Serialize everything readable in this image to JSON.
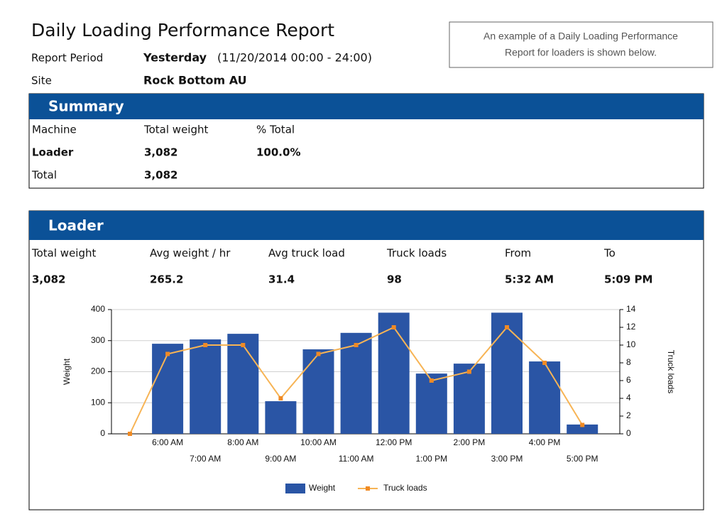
{
  "header": {
    "title": "Daily Loading Performance Report",
    "period_label": "Report Period",
    "period_value": "Yesterday",
    "period_range": "(11/20/2014 00:00 - 24:00)",
    "site_label": "Site",
    "site_value": "Rock Bottom AU",
    "note": [
      "An example of a Daily Loading Performance",
      "Report for loaders is shown below."
    ]
  },
  "summary": {
    "title": "Summary",
    "columns": [
      "Machine",
      "Total weight",
      "% Total"
    ],
    "rows": [
      [
        "Loader",
        "3,082",
        "100.0%"
      ],
      [
        "Total",
        "3,082"
      ]
    ]
  },
  "loader": {
    "title": "Loader",
    "labels": [
      "Total weight",
      "Avg weight / hr",
      "Avg truck load",
      "Truck loads",
      "From",
      "To"
    ],
    "values": [
      "3,082",
      "265.2",
      "31.4",
      "98",
      "5:32 AM",
      "5:09 PM"
    ]
  },
  "chart_data": {
    "type": "bar-line",
    "categories": [
      null,
      "6:00 AM",
      "7:00 AM",
      "8:00 AM",
      "9:00 AM",
      "10:00 AM",
      "11:00 AM",
      "12:00 PM",
      "1:00 PM",
      "2:00 PM",
      "3:00 PM",
      "4:00 PM",
      "5:00 PM"
    ],
    "series": [
      {
        "name": "Weight",
        "color": "#2a55a5",
        "values": [
          0,
          290,
          304,
          322,
          105,
          272,
          325,
          390,
          194,
          226,
          390,
          233,
          30
        ]
      },
      {
        "name": "Truck loads",
        "color": "#f7b455",
        "axis": "y2",
        "values": [
          0,
          9,
          10,
          10,
          4,
          9,
          10,
          12,
          6,
          7,
          12,
          8,
          1
        ]
      }
    ],
    "y_label": "Weight",
    "y2_label": "Truck loads",
    "ylim": [
      0,
      400
    ],
    "yticks": [
      0,
      100,
      200,
      300,
      400
    ],
    "y2lim": [
      0,
      14
    ],
    "y2ticks": [
      0,
      2,
      4,
      6,
      8,
      10,
      12,
      14
    ],
    "grid": true
  }
}
